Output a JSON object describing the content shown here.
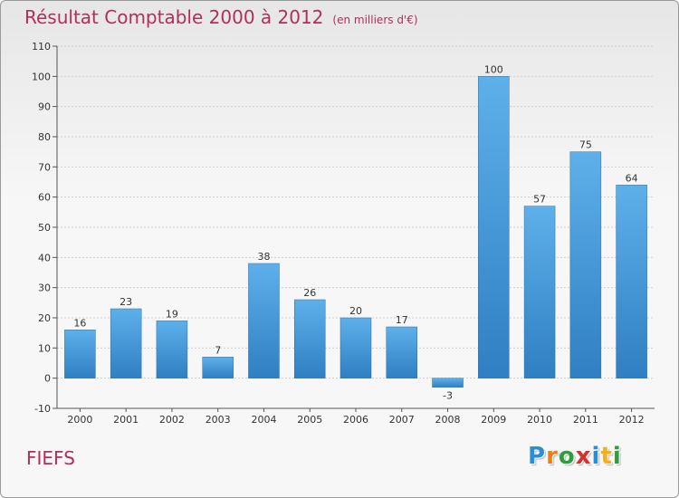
{
  "header": {
    "title": "Résultat Comptable 2000 à 2012",
    "subtitle": "(en milliers d'€)"
  },
  "footer": {
    "commune": "FIEFS",
    "logo_letters": [
      "P",
      "r",
      "o",
      "x",
      "i",
      "t",
      "i"
    ],
    "logo_colors": [
      "#2b8fd6",
      "#f07c1c",
      "#2e9e3c",
      "#d6302b",
      "#2b8fd6",
      "#f2b01e",
      "#2e9e3c"
    ]
  },
  "colors": {
    "bar_top": "#5eb0ea",
    "bar_bottom": "#2f7fc2",
    "axis_text": "#333333",
    "grid": "#cfcfcf"
  },
  "chart_data": {
    "type": "bar",
    "title": "Résultat Comptable 2000 à 2012",
    "xlabel": "",
    "ylabel": "",
    "ylim": [
      -10,
      110
    ],
    "yticks": [
      -10,
      0,
      10,
      20,
      30,
      40,
      50,
      60,
      70,
      80,
      90,
      100,
      110
    ],
    "grid": true,
    "categories": [
      "2000",
      "2001",
      "2002",
      "2003",
      "2004",
      "2005",
      "2006",
      "2007",
      "2008",
      "2009",
      "2010",
      "2011",
      "2012"
    ],
    "values": [
      16,
      23,
      19,
      7,
      38,
      26,
      20,
      17,
      -3,
      100,
      57,
      75,
      64
    ]
  }
}
